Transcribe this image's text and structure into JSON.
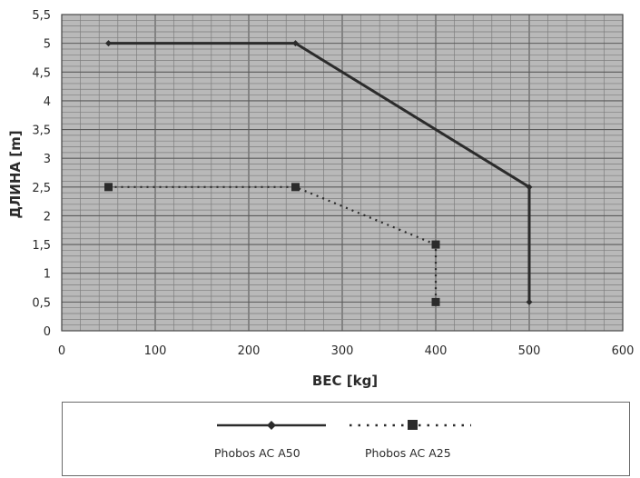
{
  "chart_data": {
    "type": "line",
    "title": "",
    "xlabel": "ВЕС [kg]",
    "ylabel": "ДЛИНА [m]",
    "xlim": [
      0,
      600
    ],
    "ylim": [
      0,
      5.5
    ],
    "x_ticks": [
      "0",
      "100",
      "200",
      "300",
      "400",
      "500",
      "600"
    ],
    "y_ticks": [
      "0",
      "0,5",
      "1",
      "1,5",
      "2",
      "2,5",
      "3",
      "3,5",
      "4",
      "4,5",
      "5",
      "5,5"
    ],
    "grid": true,
    "legend_position": "bottom",
    "series": [
      {
        "name": "Phobos AC A50",
        "style": "solid",
        "marker": "diamond",
        "color": "#2b2b2b",
        "points": [
          [
            50,
            5.0
          ],
          [
            250,
            5.0
          ],
          [
            500,
            2.5
          ],
          [
            500,
            0.5
          ]
        ]
      },
      {
        "name": "Phobos AC A25",
        "style": "dotted",
        "marker": "square",
        "color": "#2b2b2b",
        "points": [
          [
            50,
            2.5
          ],
          [
            250,
            2.5
          ],
          [
            400,
            1.5
          ],
          [
            400,
            0.5
          ]
        ]
      }
    ]
  }
}
